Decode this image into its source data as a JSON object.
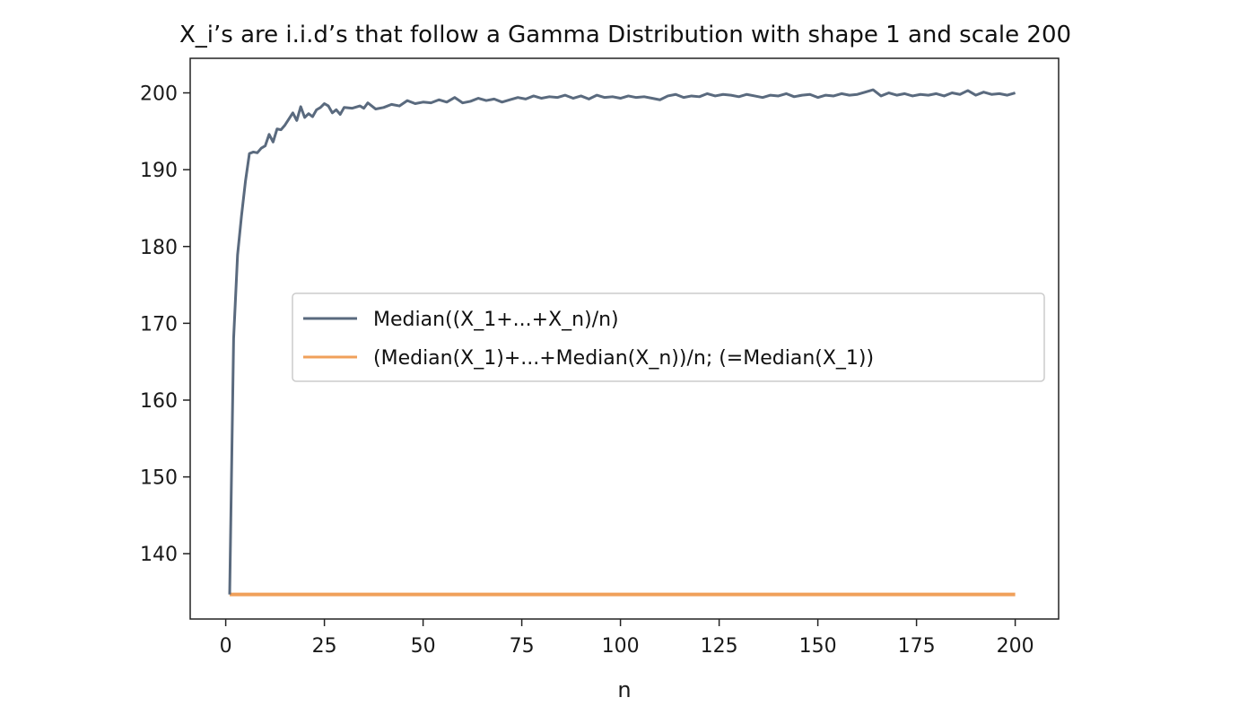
{
  "chart_data": {
    "type": "line",
    "title": "X_i’s are i.i.d’s that follow a Gamma Distribution with shape 1 and scale 200",
    "xlabel": "n",
    "ylabel": "",
    "xlim": [
      -9,
      211
    ],
    "ylim": [
      131.5,
      204.5
    ],
    "xticks": [
      0,
      25,
      50,
      75,
      100,
      125,
      150,
      175,
      200
    ],
    "yticks": [
      140,
      150,
      160,
      170,
      180,
      190,
      200
    ],
    "grid": false,
    "legend_position": "center-right",
    "series": [
      {
        "name": "Median((X_1+...+X_n)/n)",
        "color": "#5a6a7e",
        "points": [
          [
            1,
            134.7
          ],
          [
            2,
            168.0
          ],
          [
            3,
            178.9
          ],
          [
            4,
            184.0
          ],
          [
            5,
            188.5
          ],
          [
            6,
            192.1
          ],
          [
            7,
            192.3
          ],
          [
            8,
            192.2
          ],
          [
            9,
            192.8
          ],
          [
            10,
            193.1
          ],
          [
            11,
            194.6
          ],
          [
            12,
            193.6
          ],
          [
            13,
            195.3
          ],
          [
            14,
            195.2
          ],
          [
            15,
            195.8
          ],
          [
            16,
            196.6
          ],
          [
            17,
            197.4
          ],
          [
            18,
            196.4
          ],
          [
            19,
            198.2
          ],
          [
            20,
            196.8
          ],
          [
            21,
            197.3
          ],
          [
            22,
            196.9
          ],
          [
            23,
            197.8
          ],
          [
            24,
            198.1
          ],
          [
            25,
            198.6
          ],
          [
            26,
            198.3
          ],
          [
            27,
            197.4
          ],
          [
            28,
            197.8
          ],
          [
            29,
            197.2
          ],
          [
            30,
            198.1
          ],
          [
            32,
            198.0
          ],
          [
            34,
            198.3
          ],
          [
            35,
            198.0
          ],
          [
            36,
            198.7
          ],
          [
            38,
            197.9
          ],
          [
            40,
            198.1
          ],
          [
            42,
            198.5
          ],
          [
            44,
            198.3
          ],
          [
            46,
            199.0
          ],
          [
            48,
            198.6
          ],
          [
            50,
            198.8
          ],
          [
            52,
            198.7
          ],
          [
            54,
            199.1
          ],
          [
            56,
            198.8
          ],
          [
            58,
            199.4
          ],
          [
            60,
            198.7
          ],
          [
            62,
            198.9
          ],
          [
            64,
            199.3
          ],
          [
            66,
            199.0
          ],
          [
            68,
            199.2
          ],
          [
            70,
            198.8
          ],
          [
            72,
            199.1
          ],
          [
            74,
            199.4
          ],
          [
            76,
            199.2
          ],
          [
            78,
            199.6
          ],
          [
            80,
            199.3
          ],
          [
            82,
            199.5
          ],
          [
            84,
            199.4
          ],
          [
            86,
            199.7
          ],
          [
            88,
            199.3
          ],
          [
            90,
            199.6
          ],
          [
            92,
            199.2
          ],
          [
            94,
            199.7
          ],
          [
            96,
            199.4
          ],
          [
            98,
            199.5
          ],
          [
            100,
            199.3
          ],
          [
            102,
            199.6
          ],
          [
            104,
            199.4
          ],
          [
            106,
            199.5
          ],
          [
            108,
            199.3
          ],
          [
            110,
            199.1
          ],
          [
            112,
            199.6
          ],
          [
            114,
            199.8
          ],
          [
            116,
            199.4
          ],
          [
            118,
            199.6
          ],
          [
            120,
            199.5
          ],
          [
            122,
            199.9
          ],
          [
            124,
            199.6
          ],
          [
            126,
            199.8
          ],
          [
            128,
            199.7
          ],
          [
            130,
            199.5
          ],
          [
            132,
            199.8
          ],
          [
            134,
            199.6
          ],
          [
            136,
            199.4
          ],
          [
            138,
            199.7
          ],
          [
            140,
            199.6
          ],
          [
            142,
            199.9
          ],
          [
            144,
            199.5
          ],
          [
            146,
            199.7
          ],
          [
            148,
            199.8
          ],
          [
            150,
            199.4
          ],
          [
            152,
            199.7
          ],
          [
            154,
            199.6
          ],
          [
            156,
            199.9
          ],
          [
            158,
            199.7
          ],
          [
            160,
            199.8
          ],
          [
            162,
            200.1
          ],
          [
            164,
            200.4
          ],
          [
            166,
            199.6
          ],
          [
            168,
            200.0
          ],
          [
            170,
            199.7
          ],
          [
            172,
            199.9
          ],
          [
            174,
            199.6
          ],
          [
            176,
            199.8
          ],
          [
            178,
            199.7
          ],
          [
            180,
            199.9
          ],
          [
            182,
            199.6
          ],
          [
            184,
            200.0
          ],
          [
            186,
            199.8
          ],
          [
            188,
            200.3
          ],
          [
            190,
            199.7
          ],
          [
            192,
            200.1
          ],
          [
            194,
            199.8
          ],
          [
            196,
            199.9
          ],
          [
            198,
            199.7
          ],
          [
            200,
            200.0
          ]
        ]
      },
      {
        "name": "(Median(X_1)+...+Median(X_n))/n; (=Median(X_1))",
        "color": "#f0a05a",
        "points": [
          [
            1,
            134.7
          ],
          [
            200,
            134.7
          ]
        ]
      }
    ]
  }
}
